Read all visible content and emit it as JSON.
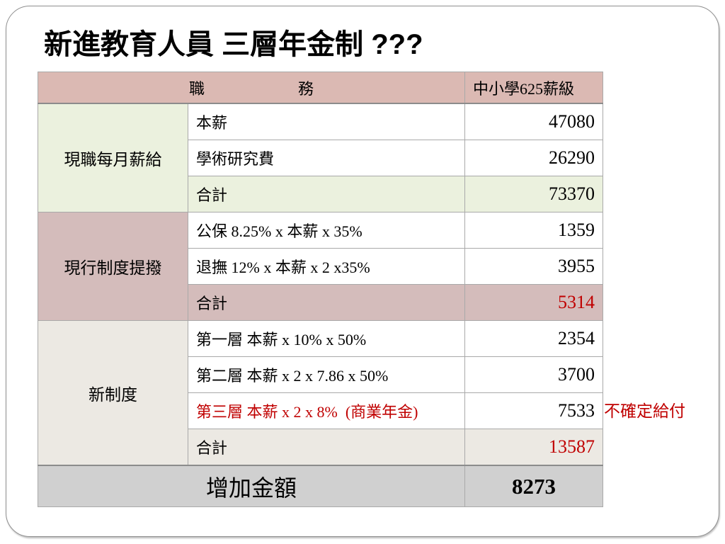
{
  "slide": {
    "title": "新進教育人員 三層年金制 ???"
  },
  "colors": {
    "header_bg": "#dbb9b3",
    "footer_bg": "#d0d0d0",
    "highlight_red": "#c00000",
    "border": "#a9a9a9"
  },
  "table": {
    "header": {
      "item": "職　　　　　　務",
      "grade": "中小學625薪級"
    },
    "groups": [
      {
        "name": "現職每月薪給",
        "color": "#ebf1de",
        "rows": [
          {
            "label": "本薪",
            "value": 47080
          },
          {
            "label": "學術研究費",
            "value": 26290
          },
          {
            "label": "合計",
            "value": 73370
          }
        ]
      },
      {
        "name": "現行制度提撥",
        "color": "#d4bcbb",
        "rows": [
          {
            "label": "公保 8.25% x 本薪 x 35%",
            "value": 1359
          },
          {
            "label": "退撫 12% x 本薪 x 2 x35%",
            "value": 3955
          },
          {
            "label": "合計",
            "value": 5314
          }
        ]
      },
      {
        "name": "新制度",
        "color": "#ece9e3",
        "rows": [
          {
            "label": "第一層 本薪 x 10% x 50%",
            "value": 2354
          },
          {
            "label": "第二層 本薪 x 2 x 7.86 x 50%",
            "value": 3700
          },
          {
            "label": "第三層 本薪 x 2 x 8%  (商業年金)",
            "value": 7533,
            "note": "不確定給付"
          },
          {
            "label": "合計",
            "value": 13587
          }
        ]
      }
    ],
    "footer": {
      "label": "增加金額",
      "value": 8273
    }
  }
}
